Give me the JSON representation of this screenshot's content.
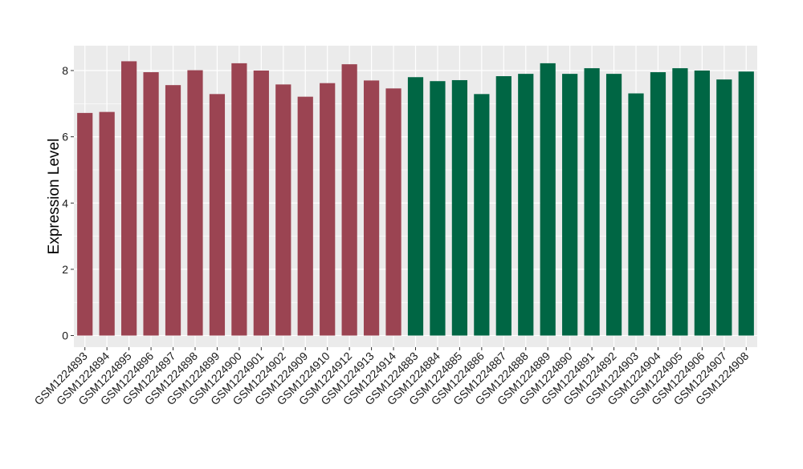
{
  "chart_data": {
    "type": "bar",
    "title": "",
    "xlabel": "",
    "ylabel": "Expression Level",
    "ylim": [
      -0.35,
      8.75
    ],
    "yticks": [
      0,
      2,
      4,
      6,
      8
    ],
    "grid": true,
    "legend": "none",
    "panel_background": "#ebebeb",
    "gridline_color": "#ffffff",
    "colors": {
      "group_1": "#9b4452",
      "group_2": "#006644"
    },
    "categories": [
      "GSM1224893",
      "GSM1224894",
      "GSM1224895",
      "GSM1224896",
      "GSM1224897",
      "GSM1224898",
      "GSM1224899",
      "GSM1224900",
      "GSM1224901",
      "GSM1224902",
      "GSM1224909",
      "GSM1224910",
      "GSM1224912",
      "GSM1224913",
      "GSM1224914",
      "GSM1224883",
      "GSM1224884",
      "GSM1224885",
      "GSM1224886",
      "GSM1224887",
      "GSM1224888",
      "GSM1224889",
      "GSM1224890",
      "GSM1224891",
      "GSM1224892",
      "GSM1224903",
      "GSM1224904",
      "GSM1224905",
      "GSM1224906",
      "GSM1224907",
      "GSM1224908"
    ],
    "values": [
      6.72,
      6.75,
      8.28,
      7.95,
      7.56,
      8.01,
      7.29,
      8.22,
      8.0,
      7.58,
      7.21,
      7.62,
      8.19,
      7.7,
      7.46,
      7.8,
      7.68,
      7.71,
      7.29,
      7.83,
      7.9,
      8.22,
      7.9,
      8.07,
      7.9,
      7.31,
      7.95,
      8.07,
      8.0,
      7.73,
      7.97
    ],
    "groups": [
      1,
      1,
      1,
      1,
      1,
      1,
      1,
      1,
      1,
      1,
      1,
      1,
      1,
      1,
      1,
      2,
      2,
      2,
      2,
      2,
      2,
      2,
      2,
      2,
      2,
      2,
      2,
      2,
      2,
      2,
      2
    ]
  }
}
